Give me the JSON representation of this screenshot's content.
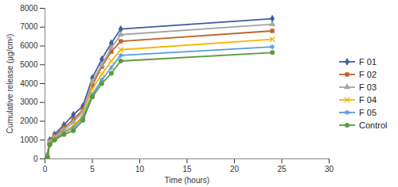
{
  "chart_data": {
    "type": "line",
    "x_label": "Time (hours)",
    "y_label": "Cumulative release (μg/cm²)",
    "x": [
      0,
      0.25,
      0.5,
      1,
      2,
      3,
      4,
      5,
      6,
      7,
      8,
      24
    ],
    "xlim": [
      0,
      30
    ],
    "xticks": [
      0,
      5,
      10,
      15,
      20,
      25,
      30
    ],
    "ylim": [
      0,
      8000
    ],
    "yticks": [
      0,
      1000,
      2000,
      3000,
      4000,
      5000,
      6000,
      7000,
      8000
    ],
    "grid": false,
    "legend": "right",
    "series": [
      {
        "name": "F 01",
        "color": "#3d5f9e",
        "marker": "diamond",
        "values": [
          0,
          200,
          1000,
          1300,
          1800,
          2350,
          2800,
          4300,
          5300,
          6150,
          6900,
          7450
        ]
      },
      {
        "name": "F 02",
        "color": "#c0622b",
        "marker": "square",
        "values": [
          0,
          150,
          950,
          1200,
          1650,
          2100,
          2600,
          3900,
          4900,
          5700,
          6250,
          6800
        ]
      },
      {
        "name": "F 03",
        "color": "#a5a5a5",
        "marker": "triangle",
        "values": [
          0,
          150,
          900,
          1150,
          1550,
          1950,
          2500,
          4100,
          5000,
          5900,
          6600,
          7150
        ]
      },
      {
        "name": "F 04",
        "color": "#f2b800",
        "marker": "x",
        "values": [
          0,
          120,
          850,
          1100,
          1450,
          1750,
          2300,
          3700,
          4500,
          5200,
          5800,
          6350
        ]
      },
      {
        "name": "F 05",
        "color": "#5b9bd5",
        "marker": "asterisk",
        "values": [
          0,
          100,
          800,
          1050,
          1400,
          1650,
          2200,
          3400,
          4200,
          4850,
          5500,
          5950
        ]
      },
      {
        "name": "Control",
        "color": "#5a9a3c",
        "marker": "circle",
        "values": [
          0,
          100,
          750,
          1000,
          1300,
          1500,
          2050,
          3300,
          4000,
          4550,
          5200,
          5650
        ]
      }
    ]
  }
}
